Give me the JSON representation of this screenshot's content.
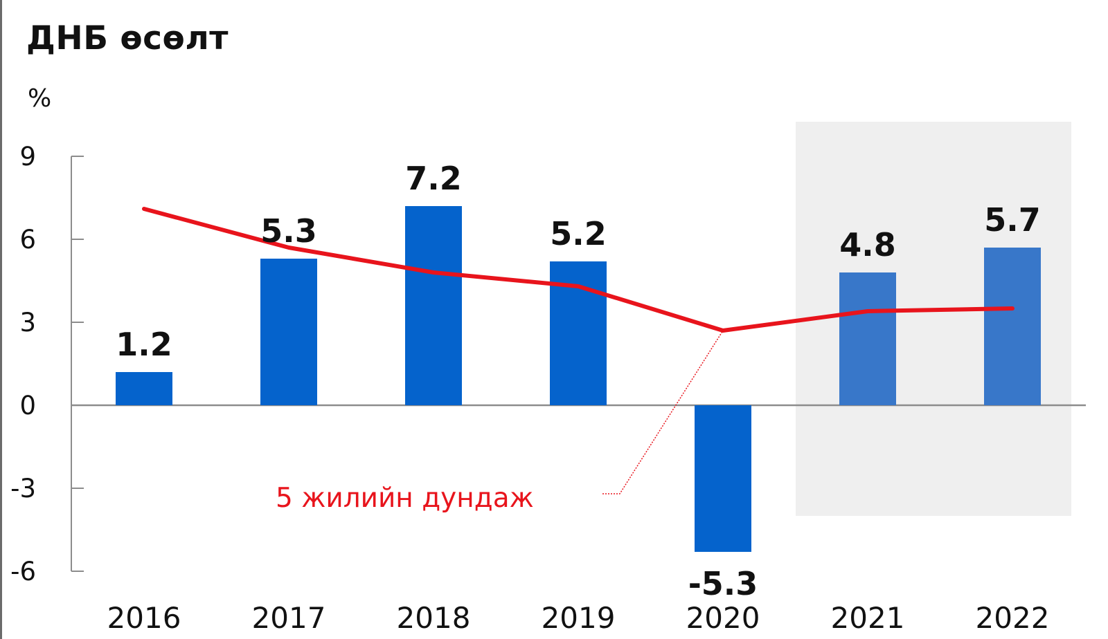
{
  "chart_data": {
    "type": "bar",
    "title": "ДНБ өсөлт",
    "ylabel": "%",
    "categories": [
      "2016",
      "2017",
      "2018",
      "2019",
      "2020",
      "2021",
      "2022"
    ],
    "series": [
      {
        "values": [
          1.2,
          5.3,
          7.2,
          5.2,
          -5.3,
          4.8,
          5.7
        ]
      },
      {
        "name": "5 жилийн дундаж",
        "type": "line",
        "values": [
          7.1,
          5.7,
          4.8,
          4.3,
          2.7,
          3.4,
          3.5
        ]
      }
    ],
    "data_labels": [
      "1.2",
      "5.3",
      "7.2",
      "5.2",
      "-5.3",
      "4.8",
      "5.7"
    ],
    "yticks": [
      9,
      6,
      3,
      0,
      -3,
      -6
    ],
    "ylim": [
      -6,
      9
    ],
    "highlight_categories": [
      "2021",
      "2022"
    ],
    "annotation": "5 жилийн дундаж",
    "colors": {
      "bar": "#0563cc",
      "bar_highlight": "#3877c9",
      "line": "#e8141c",
      "highlight_band": "#efefef",
      "axis": "#8c8c8c"
    }
  }
}
